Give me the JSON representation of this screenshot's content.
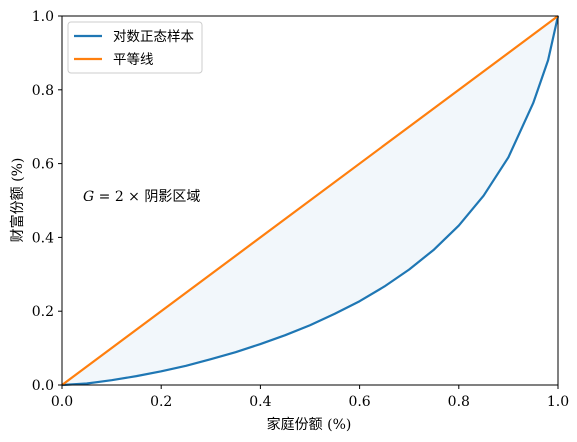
{
  "chart_data": {
    "type": "line",
    "xlabel": "家庭份额 (%)",
    "ylabel": "财富份额 (%)",
    "xlim": [
      0.0,
      1.0
    ],
    "ylim": [
      0.0,
      1.0
    ],
    "x_ticks": [
      "0.0",
      "0.2",
      "0.4",
      "0.6",
      "0.8",
      "1.0"
    ],
    "y_ticks": [
      "0.0",
      "0.2",
      "0.4",
      "0.6",
      "0.8",
      "1.0"
    ],
    "grid": false,
    "legend_position": "top-left",
    "series": [
      {
        "name": "对数正态样本",
        "color": "#1f77b4",
        "x": [
          0.0,
          0.05,
          0.1,
          0.15,
          0.2,
          0.25,
          0.3,
          0.35,
          0.4,
          0.45,
          0.5,
          0.55,
          0.6,
          0.65,
          0.7,
          0.75,
          0.8,
          0.85,
          0.9,
          0.95,
          0.98,
          1.0
        ],
        "y": [
          0.0,
          0.004,
          0.013,
          0.024,
          0.037,
          0.052,
          0.07,
          0.089,
          0.111,
          0.135,
          0.162,
          0.193,
          0.227,
          0.267,
          0.313,
          0.367,
          0.432,
          0.513,
          0.617,
          0.764,
          0.88,
          1.0
        ]
      },
      {
        "name": "平等线",
        "color": "#ff7f0e",
        "x": [
          0.0,
          1.0
        ],
        "y": [
          0.0,
          1.0
        ]
      }
    ],
    "shaded_region": {
      "between": [
        "平等线",
        "对数正态样本"
      ],
      "color": "#1f77b4",
      "opacity": 0.06
    },
    "annotation": {
      "italic_prefix": "G",
      "text": " = 2 × 阴影区域",
      "x": 0.04,
      "y": 0.5
    }
  }
}
